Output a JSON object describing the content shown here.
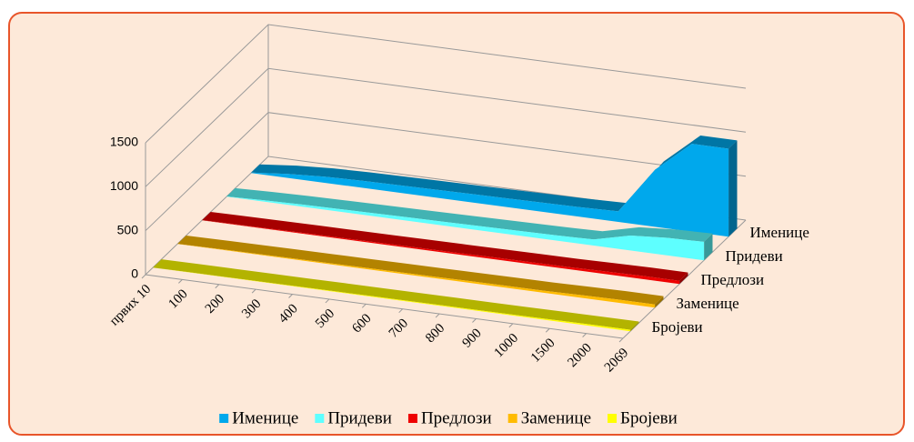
{
  "chart_data": {
    "type": "area3d",
    "categories": [
      "првих 10",
      "100",
      "200",
      "300",
      "400",
      "500",
      "600",
      "700",
      "800",
      "900",
      "1000",
      "1500",
      "2000",
      "2069"
    ],
    "series": [
      {
        "name": "Именице",
        "color": "#00a8ec",
        "values": [
          4,
          45,
          70,
          80,
          85,
          90,
          95,
          100,
          105,
          110,
          120,
          650,
          1000,
          1000
        ]
      },
      {
        "name": "Придеви",
        "color": "#5effff",
        "values": [
          2,
          15,
          25,
          30,
          35,
          40,
          45,
          50,
          55,
          60,
          70,
          170,
          200,
          210
        ]
      },
      {
        "name": "Предлози",
        "color": "#ee0000",
        "values": [
          1,
          5,
          8,
          10,
          12,
          14,
          16,
          18,
          20,
          22,
          24,
          30,
          35,
          36
        ]
      },
      {
        "name": "Заменице",
        "color": "#ffbb00",
        "values": [
          1,
          5,
          8,
          10,
          12,
          14,
          16,
          18,
          20,
          22,
          24,
          30,
          35,
          36
        ]
      },
      {
        "name": "Бројеви",
        "color": "#ffff00",
        "values": [
          0,
          2,
          3,
          4,
          5,
          6,
          7,
          8,
          9,
          10,
          11,
          14,
          16,
          17
        ]
      }
    ],
    "ylim": [
      0,
      1500
    ],
    "yticks": [
      0,
      500,
      1000,
      1500
    ],
    "grid": true,
    "legend": "bottom"
  }
}
